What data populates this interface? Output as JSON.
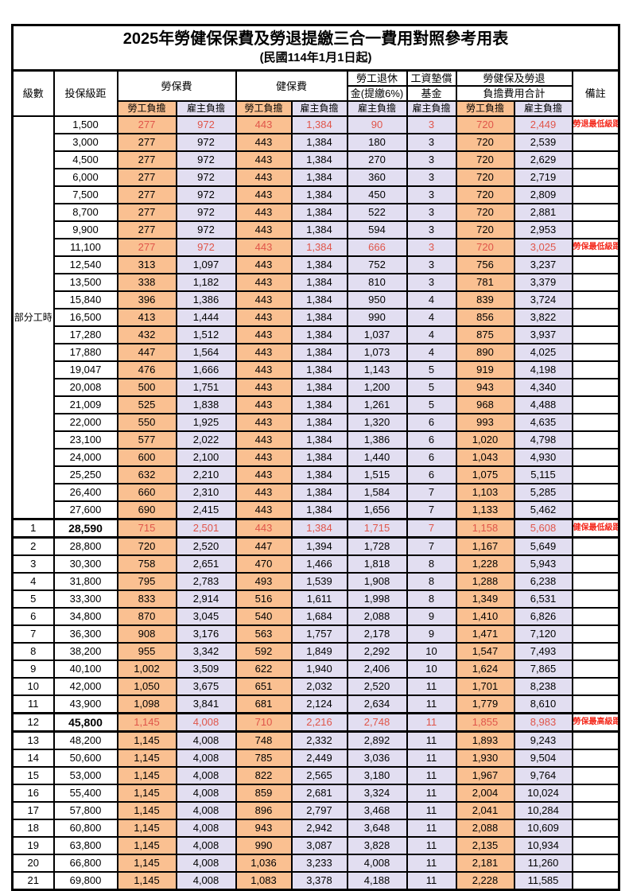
{
  "title": {
    "main": "2025年勞健保保費及勞退提繳三合一費用對照參考用表",
    "sub": "(民國114年1月1日起)"
  },
  "header": {
    "level": "級數",
    "bracket": "投保級距",
    "labor": "勞保費",
    "health": "健保費",
    "pension_l1": "勞工退休",
    "pension_l2": "金(提繳6%)",
    "fund_l1": "工資墊償",
    "fund_l2": "基金",
    "total_l1": "勞健保及勞退",
    "total_l2": "負擔費用合計",
    "remark": "備註",
    "employee": "勞工負擔",
    "employer": "雇主負擔"
  },
  "colors": {
    "employee_column_bg": "#fac091",
    "employer_column_bg": "#e2def1",
    "highlight_number_red": "#e0554a",
    "remark_red": "#f42a1d"
  },
  "table": {
    "section_label": "部分工時",
    "rows": [
      {
        "level": "",
        "bracket": "1,500",
        "labor_emp": "277",
        "labor_er": "972",
        "health_emp": "443",
        "health_er": "1,384",
        "pension_er": "90",
        "fund_er": "3",
        "total_emp": "720",
        "total_er": "2,449",
        "remark": "勞退最低級距",
        "red": true,
        "bold": false
      },
      {
        "level": "",
        "bracket": "3,000",
        "labor_emp": "277",
        "labor_er": "972",
        "health_emp": "443",
        "health_er": "1,384",
        "pension_er": "180",
        "fund_er": "3",
        "total_emp": "720",
        "total_er": "2,539",
        "remark": "",
        "red": false,
        "bold": false
      },
      {
        "level": "",
        "bracket": "4,500",
        "labor_emp": "277",
        "labor_er": "972",
        "health_emp": "443",
        "health_er": "1,384",
        "pension_er": "270",
        "fund_er": "3",
        "total_emp": "720",
        "total_er": "2,629",
        "remark": "",
        "red": false,
        "bold": false
      },
      {
        "level": "",
        "bracket": "6,000",
        "labor_emp": "277",
        "labor_er": "972",
        "health_emp": "443",
        "health_er": "1,384",
        "pension_er": "360",
        "fund_er": "3",
        "total_emp": "720",
        "total_er": "2,719",
        "remark": "",
        "red": false,
        "bold": false
      },
      {
        "level": "",
        "bracket": "7,500",
        "labor_emp": "277",
        "labor_er": "972",
        "health_emp": "443",
        "health_er": "1,384",
        "pension_er": "450",
        "fund_er": "3",
        "total_emp": "720",
        "total_er": "2,809",
        "remark": "",
        "red": false,
        "bold": false
      },
      {
        "level": "",
        "bracket": "8,700",
        "labor_emp": "277",
        "labor_er": "972",
        "health_emp": "443",
        "health_er": "1,384",
        "pension_er": "522",
        "fund_er": "3",
        "total_emp": "720",
        "total_er": "2,881",
        "remark": "",
        "red": false,
        "bold": false
      },
      {
        "level": "",
        "bracket": "9,900",
        "labor_emp": "277",
        "labor_er": "972",
        "health_emp": "443",
        "health_er": "1,384",
        "pension_er": "594",
        "fund_er": "3",
        "total_emp": "720",
        "total_er": "2,953",
        "remark": "",
        "red": false,
        "bold": false
      },
      {
        "level": "",
        "bracket": "11,100",
        "labor_emp": "277",
        "labor_er": "972",
        "health_emp": "443",
        "health_er": "1,384",
        "pension_er": "666",
        "fund_er": "3",
        "total_emp": "720",
        "total_er": "3,025",
        "remark": "勞保最低級距",
        "red": true,
        "bold": false
      },
      {
        "level": "",
        "bracket": "12,540",
        "labor_emp": "313",
        "labor_er": "1,097",
        "health_emp": "443",
        "health_er": "1,384",
        "pension_er": "752",
        "fund_er": "3",
        "total_emp": "756",
        "total_er": "3,237",
        "remark": "",
        "red": false,
        "bold": false
      },
      {
        "level": "",
        "bracket": "13,500",
        "labor_emp": "338",
        "labor_er": "1,182",
        "health_emp": "443",
        "health_er": "1,384",
        "pension_er": "810",
        "fund_er": "3",
        "total_emp": "781",
        "total_er": "3,379",
        "remark": "",
        "red": false,
        "bold": false
      },
      {
        "level": "",
        "bracket": "15,840",
        "labor_emp": "396",
        "labor_er": "1,386",
        "health_emp": "443",
        "health_er": "1,384",
        "pension_er": "950",
        "fund_er": "4",
        "total_emp": "839",
        "total_er": "3,724",
        "remark": "",
        "red": false,
        "bold": false
      },
      {
        "level": "",
        "bracket": "16,500",
        "labor_emp": "413",
        "labor_er": "1,444",
        "health_emp": "443",
        "health_er": "1,384",
        "pension_er": "990",
        "fund_er": "4",
        "total_emp": "856",
        "total_er": "3,822",
        "remark": "",
        "red": false,
        "bold": false
      },
      {
        "level": "",
        "bracket": "17,280",
        "labor_emp": "432",
        "labor_er": "1,512",
        "health_emp": "443",
        "health_er": "1,384",
        "pension_er": "1,037",
        "fund_er": "4",
        "total_emp": "875",
        "total_er": "3,937",
        "remark": "",
        "red": false,
        "bold": false
      },
      {
        "level": "",
        "bracket": "17,880",
        "labor_emp": "447",
        "labor_er": "1,564",
        "health_emp": "443",
        "health_er": "1,384",
        "pension_er": "1,073",
        "fund_er": "4",
        "total_emp": "890",
        "total_er": "4,025",
        "remark": "",
        "red": false,
        "bold": false
      },
      {
        "level": "",
        "bracket": "19,047",
        "labor_emp": "476",
        "labor_er": "1,666",
        "health_emp": "443",
        "health_er": "1,384",
        "pension_er": "1,143",
        "fund_er": "5",
        "total_emp": "919",
        "total_er": "4,198",
        "remark": "",
        "red": false,
        "bold": false
      },
      {
        "level": "",
        "bracket": "20,008",
        "labor_emp": "500",
        "labor_er": "1,751",
        "health_emp": "443",
        "health_er": "1,384",
        "pension_er": "1,200",
        "fund_er": "5",
        "total_emp": "943",
        "total_er": "4,340",
        "remark": "",
        "red": false,
        "bold": false
      },
      {
        "level": "",
        "bracket": "21,009",
        "labor_emp": "525",
        "labor_er": "1,838",
        "health_emp": "443",
        "health_er": "1,384",
        "pension_er": "1,261",
        "fund_er": "5",
        "total_emp": "968",
        "total_er": "4,488",
        "remark": "",
        "red": false,
        "bold": false
      },
      {
        "level": "",
        "bracket": "22,000",
        "labor_emp": "550",
        "labor_er": "1,925",
        "health_emp": "443",
        "health_er": "1,384",
        "pension_er": "1,320",
        "fund_er": "6",
        "total_emp": "993",
        "total_er": "4,635",
        "remark": "",
        "red": false,
        "bold": false
      },
      {
        "level": "",
        "bracket": "23,100",
        "labor_emp": "577",
        "labor_er": "2,022",
        "health_emp": "443",
        "health_er": "1,384",
        "pension_er": "1,386",
        "fund_er": "6",
        "total_emp": "1,020",
        "total_er": "4,798",
        "remark": "",
        "red": false,
        "bold": false
      },
      {
        "level": "",
        "bracket": "24,000",
        "labor_emp": "600",
        "labor_er": "2,100",
        "health_emp": "443",
        "health_er": "1,384",
        "pension_er": "1,440",
        "fund_er": "6",
        "total_emp": "1,043",
        "total_er": "4,930",
        "remark": "",
        "red": false,
        "bold": false
      },
      {
        "level": "",
        "bracket": "25,250",
        "labor_emp": "632",
        "labor_er": "2,210",
        "health_emp": "443",
        "health_er": "1,384",
        "pension_er": "1,515",
        "fund_er": "6",
        "total_emp": "1,075",
        "total_er": "5,115",
        "remark": "",
        "red": false,
        "bold": false
      },
      {
        "level": "",
        "bracket": "26,400",
        "labor_emp": "660",
        "labor_er": "2,310",
        "health_emp": "443",
        "health_er": "1,384",
        "pension_er": "1,584",
        "fund_er": "7",
        "total_emp": "1,103",
        "total_er": "5,285",
        "remark": "",
        "red": false,
        "bold": false
      },
      {
        "level": "",
        "bracket": "27,600",
        "labor_emp": "690",
        "labor_er": "2,415",
        "health_emp": "443",
        "health_er": "1,384",
        "pension_er": "1,656",
        "fund_er": "7",
        "total_emp": "1,133",
        "total_er": "5,462",
        "remark": "",
        "red": false,
        "bold": false
      },
      {
        "level": "1",
        "bracket": "28,590",
        "labor_emp": "715",
        "labor_er": "2,501",
        "health_emp": "443",
        "health_er": "1,384",
        "pension_er": "1,715",
        "fund_er": "7",
        "total_emp": "1,158",
        "total_er": "5,608",
        "remark": "健保最低級距",
        "red": true,
        "bold": true
      },
      {
        "level": "2",
        "bracket": "28,800",
        "labor_emp": "720",
        "labor_er": "2,520",
        "health_emp": "447",
        "health_er": "1,394",
        "pension_er": "1,728",
        "fund_er": "7",
        "total_emp": "1,167",
        "total_er": "5,649",
        "remark": "",
        "red": false,
        "bold": false
      },
      {
        "level": "3",
        "bracket": "30,300",
        "labor_emp": "758",
        "labor_er": "2,651",
        "health_emp": "470",
        "health_er": "1,466",
        "pension_er": "1,818",
        "fund_er": "8",
        "total_emp": "1,228",
        "total_er": "5,943",
        "remark": "",
        "red": false,
        "bold": false
      },
      {
        "level": "4",
        "bracket": "31,800",
        "labor_emp": "795",
        "labor_er": "2,783",
        "health_emp": "493",
        "health_er": "1,539",
        "pension_er": "1,908",
        "fund_er": "8",
        "total_emp": "1,288",
        "total_er": "6,238",
        "remark": "",
        "red": false,
        "bold": false
      },
      {
        "level": "5",
        "bracket": "33,300",
        "labor_emp": "833",
        "labor_er": "2,914",
        "health_emp": "516",
        "health_er": "1,611",
        "pension_er": "1,998",
        "fund_er": "8",
        "total_emp": "1,349",
        "total_er": "6,531",
        "remark": "",
        "red": false,
        "bold": false
      },
      {
        "level": "6",
        "bracket": "34,800",
        "labor_emp": "870",
        "labor_er": "3,045",
        "health_emp": "540",
        "health_er": "1,684",
        "pension_er": "2,088",
        "fund_er": "9",
        "total_emp": "1,410",
        "total_er": "6,826",
        "remark": "",
        "red": false,
        "bold": false
      },
      {
        "level": "7",
        "bracket": "36,300",
        "labor_emp": "908",
        "labor_er": "3,176",
        "health_emp": "563",
        "health_er": "1,757",
        "pension_er": "2,178",
        "fund_er": "9",
        "total_emp": "1,471",
        "total_er": "7,120",
        "remark": "",
        "red": false,
        "bold": false
      },
      {
        "level": "8",
        "bracket": "38,200",
        "labor_emp": "955",
        "labor_er": "3,342",
        "health_emp": "592",
        "health_er": "1,849",
        "pension_er": "2,292",
        "fund_er": "10",
        "total_emp": "1,547",
        "total_er": "7,493",
        "remark": "",
        "red": false,
        "bold": false
      },
      {
        "level": "9",
        "bracket": "40,100",
        "labor_emp": "1,002",
        "labor_er": "3,509",
        "health_emp": "622",
        "health_er": "1,940",
        "pension_er": "2,406",
        "fund_er": "10",
        "total_emp": "1,624",
        "total_er": "7,865",
        "remark": "",
        "red": false,
        "bold": false
      },
      {
        "level": "10",
        "bracket": "42,000",
        "labor_emp": "1,050",
        "labor_er": "3,675",
        "health_emp": "651",
        "health_er": "2,032",
        "pension_er": "2,520",
        "fund_er": "11",
        "total_emp": "1,701",
        "total_er": "8,238",
        "remark": "",
        "red": false,
        "bold": false
      },
      {
        "level": "11",
        "bracket": "43,900",
        "labor_emp": "1,098",
        "labor_er": "3,841",
        "health_emp": "681",
        "health_er": "2,124",
        "pension_er": "2,634",
        "fund_er": "11",
        "total_emp": "1,779",
        "total_er": "8,610",
        "remark": "",
        "red": false,
        "bold": false
      },
      {
        "level": "12",
        "bracket": "45,800",
        "labor_emp": "1,145",
        "labor_er": "4,008",
        "health_emp": "710",
        "health_er": "2,216",
        "pension_er": "2,748",
        "fund_er": "11",
        "total_emp": "1,855",
        "total_er": "8,983",
        "remark": "勞保最高級距",
        "red": true,
        "bold": true
      },
      {
        "level": "13",
        "bracket": "48,200",
        "labor_emp": "1,145",
        "labor_er": "4,008",
        "health_emp": "748",
        "health_er": "2,332",
        "pension_er": "2,892",
        "fund_er": "11",
        "total_emp": "1,893",
        "total_er": "9,243",
        "remark": "",
        "red": false,
        "bold": false
      },
      {
        "level": "14",
        "bracket": "50,600",
        "labor_emp": "1,145",
        "labor_er": "4,008",
        "health_emp": "785",
        "health_er": "2,449",
        "pension_er": "3,036",
        "fund_er": "11",
        "total_emp": "1,930",
        "total_er": "9,504",
        "remark": "",
        "red": false,
        "bold": false
      },
      {
        "level": "15",
        "bracket": "53,000",
        "labor_emp": "1,145",
        "labor_er": "4,008",
        "health_emp": "822",
        "health_er": "2,565",
        "pension_er": "3,180",
        "fund_er": "11",
        "total_emp": "1,967",
        "total_er": "9,764",
        "remark": "",
        "red": false,
        "bold": false
      },
      {
        "level": "16",
        "bracket": "55,400",
        "labor_emp": "1,145",
        "labor_er": "4,008",
        "health_emp": "859",
        "health_er": "2,681",
        "pension_er": "3,324",
        "fund_er": "11",
        "total_emp": "2,004",
        "total_er": "10,024",
        "remark": "",
        "red": false,
        "bold": false
      },
      {
        "level": "17",
        "bracket": "57,800",
        "labor_emp": "1,145",
        "labor_er": "4,008",
        "health_emp": "896",
        "health_er": "2,797",
        "pension_er": "3,468",
        "fund_er": "11",
        "total_emp": "2,041",
        "total_er": "10,284",
        "remark": "",
        "red": false,
        "bold": false
      },
      {
        "level": "18",
        "bracket": "60,800",
        "labor_emp": "1,145",
        "labor_er": "4,008",
        "health_emp": "943",
        "health_er": "2,942",
        "pension_er": "3,648",
        "fund_er": "11",
        "total_emp": "2,088",
        "total_er": "10,609",
        "remark": "",
        "red": false,
        "bold": false
      },
      {
        "level": "19",
        "bracket": "63,800",
        "labor_emp": "1,145",
        "labor_er": "4,008",
        "health_emp": "990",
        "health_er": "3,087",
        "pension_er": "3,828",
        "fund_er": "11",
        "total_emp": "2,135",
        "total_er": "10,934",
        "remark": "",
        "red": false,
        "bold": false
      },
      {
        "level": "20",
        "bracket": "66,800",
        "labor_emp": "1,145",
        "labor_er": "4,008",
        "health_emp": "1,036",
        "health_er": "3,233",
        "pension_er": "4,008",
        "fund_er": "11",
        "total_emp": "2,181",
        "total_er": "11,260",
        "remark": "",
        "red": false,
        "bold": false
      },
      {
        "level": "21",
        "bracket": "69,800",
        "labor_emp": "1,145",
        "labor_er": "4,008",
        "health_emp": "1,083",
        "health_er": "3,378",
        "pension_er": "4,188",
        "fund_er": "11",
        "total_emp": "2,228",
        "total_er": "11,585",
        "remark": "",
        "red": false,
        "bold": false
      }
    ]
  }
}
